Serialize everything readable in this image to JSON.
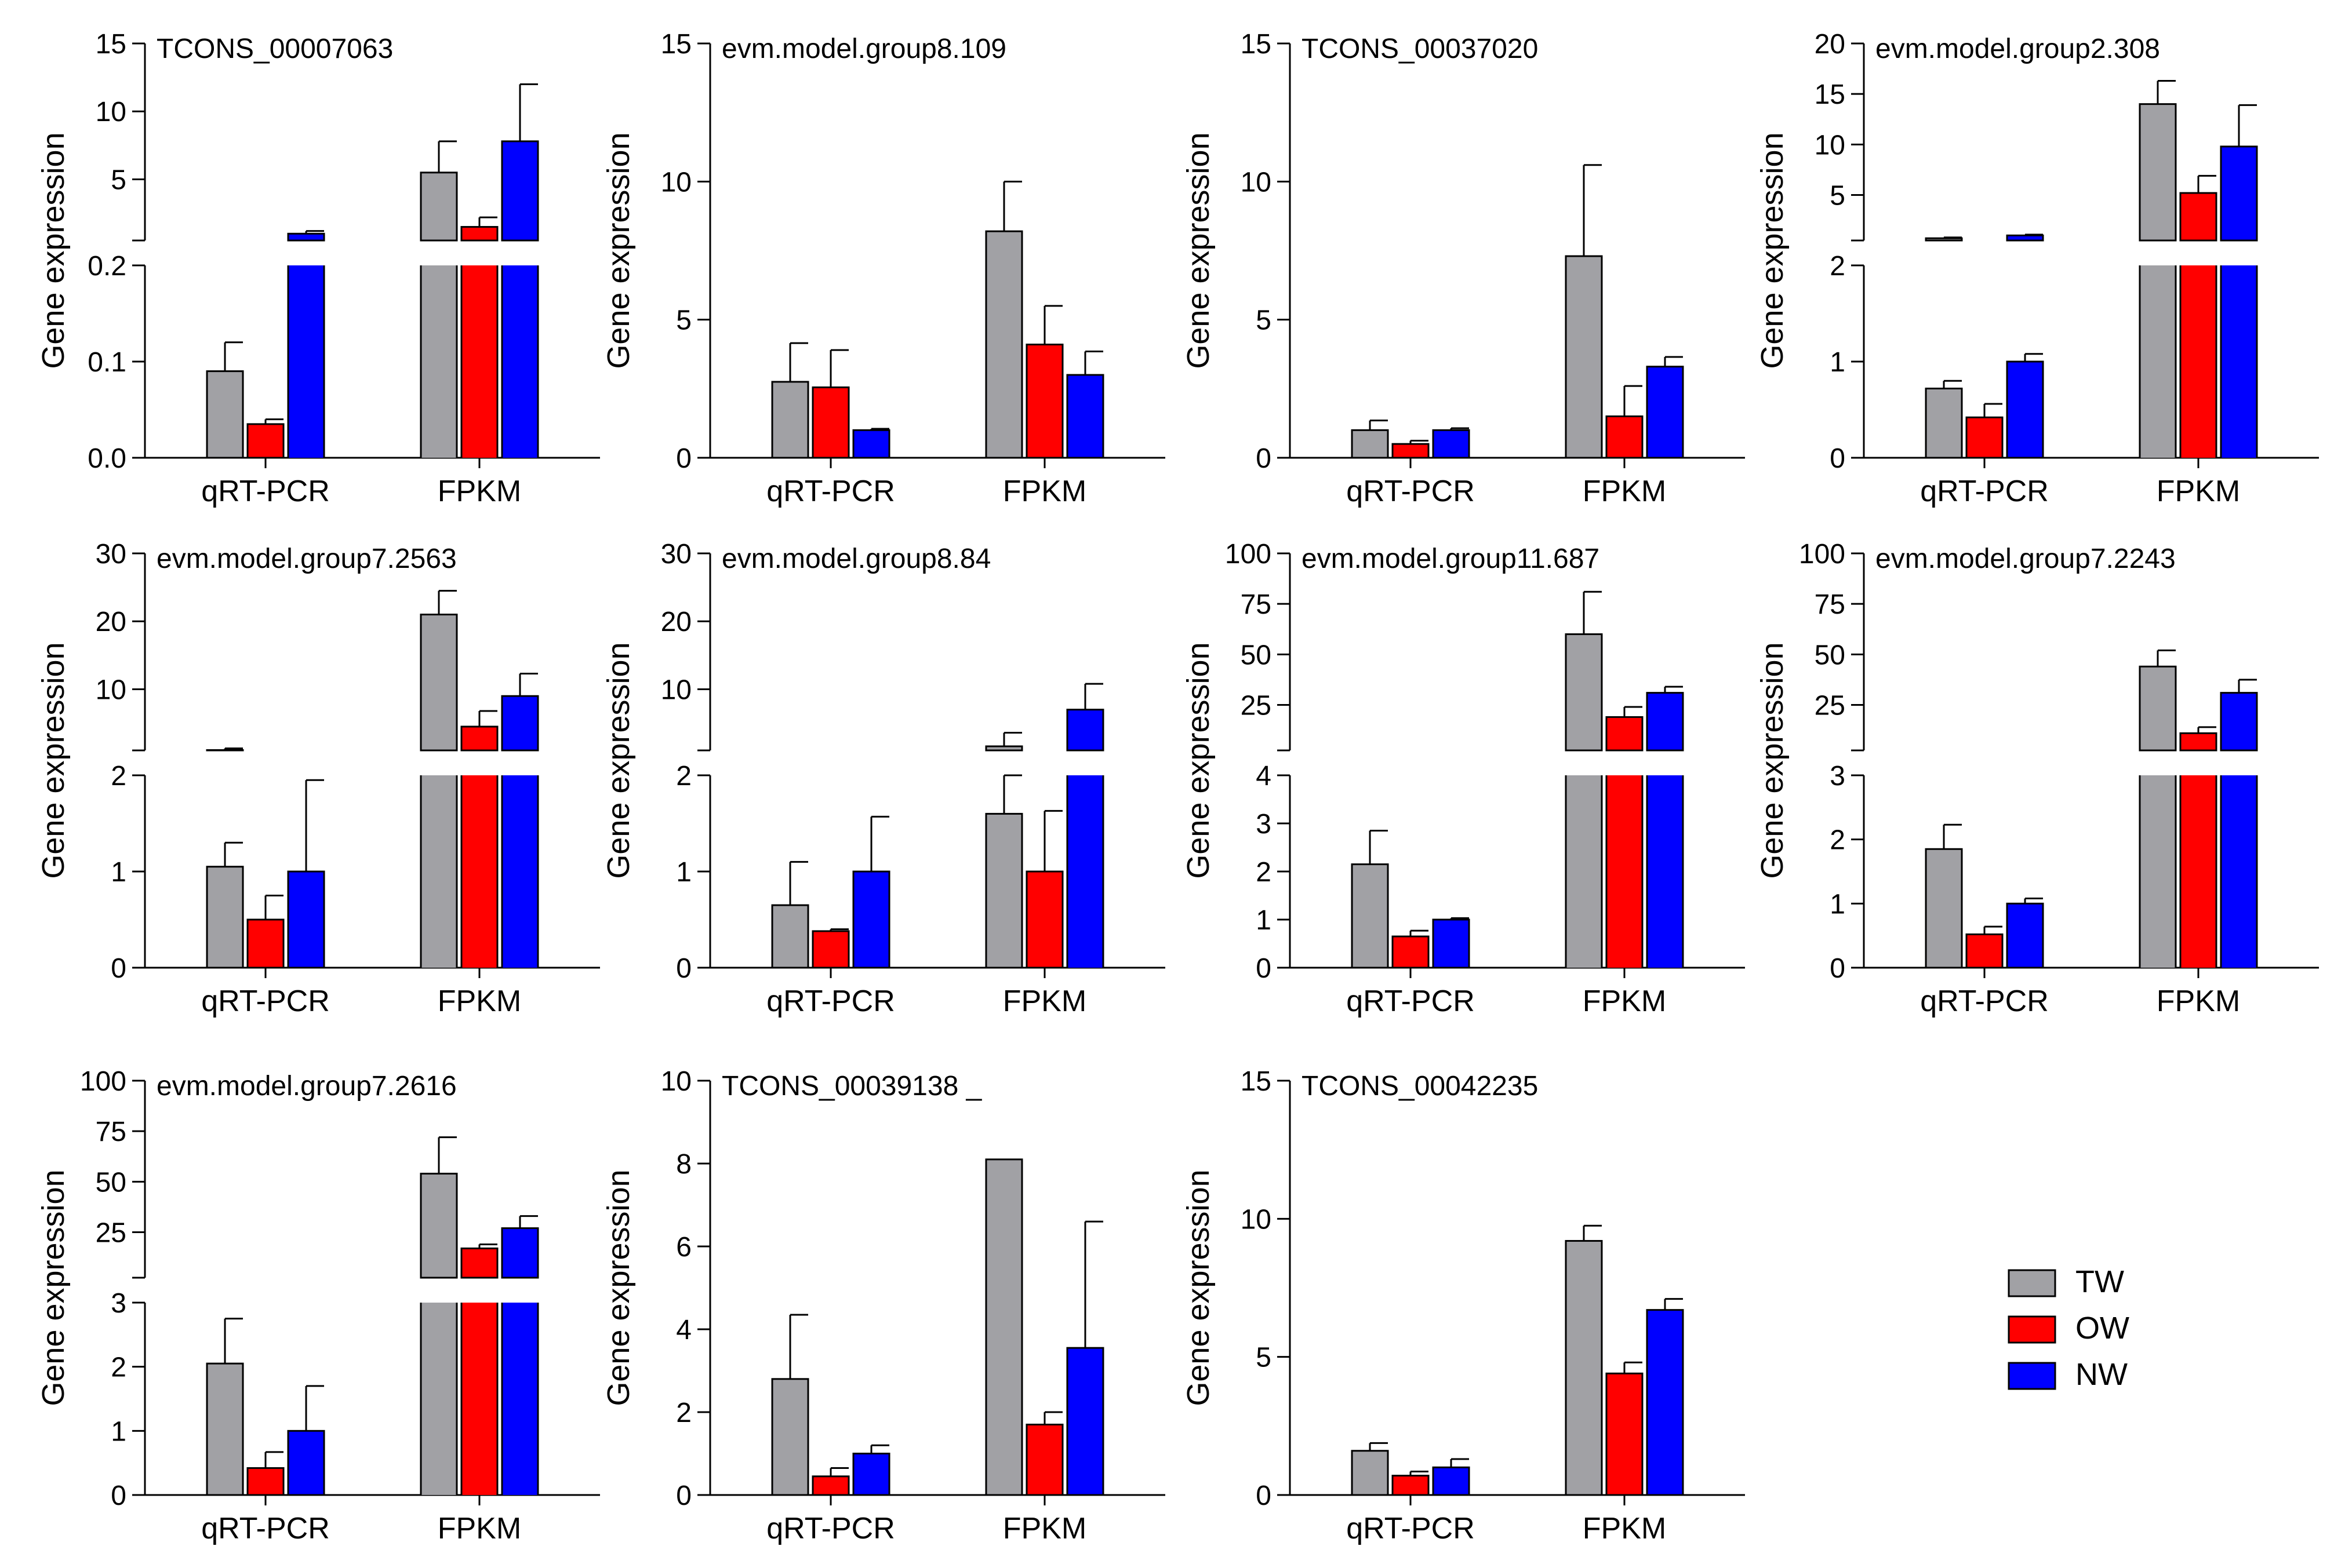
{
  "figure": {
    "ylabel": "Gene expression",
    "legend": [
      {
        "name": "TW",
        "color": "#a1a1a5"
      },
      {
        "name": "OW",
        "color": "#ff0000"
      },
      {
        "name": "NW",
        "color": "#0000ff"
      }
    ]
  },
  "chart_data": [
    {
      "type": "bar",
      "title": "TCONS_00007063",
      "categories": [
        "qRT-PCR",
        "FPKM"
      ],
      "ylabel": "Gene expression",
      "broken_axis": true,
      "lower": {
        "ylim": [
          0,
          0.2
        ],
        "ticks": [
          "0.0",
          "0.1",
          "0.2"
        ]
      },
      "upper": {
        "ylim": [
          0,
          15
        ],
        "ticks": [
          "5",
          "10",
          "15"
        ]
      },
      "series": [
        {
          "name": "TW",
          "values": [
            0.09,
            5.5
          ],
          "errors": [
            0.03,
            2.3
          ]
        },
        {
          "name": "OW",
          "values": [
            0.035,
            1.5
          ],
          "errors": [
            0.005,
            0.7
          ]
        },
        {
          "name": "NW",
          "values": [
            1.0,
            7.8
          ],
          "errors": [
            0.2,
            4.2
          ]
        }
      ]
    },
    {
      "type": "bar",
      "title": "evm.model.group8.109",
      "categories": [
        "qRT-PCR",
        "FPKM"
      ],
      "ylabel": "Gene expression",
      "broken_axis": false,
      "ylim": [
        0,
        15
      ],
      "ticks": [
        "0",
        "5",
        "10",
        "15"
      ],
      "series": [
        {
          "name": "TW",
          "values": [
            2.75,
            8.2
          ],
          "errors": [
            1.4,
            1.8
          ]
        },
        {
          "name": "OW",
          "values": [
            2.55,
            4.1
          ],
          "errors": [
            1.35,
            1.4
          ]
        },
        {
          "name": "NW",
          "values": [
            1.0,
            3.0
          ],
          "errors": [
            0.05,
            0.85
          ]
        }
      ]
    },
    {
      "type": "bar",
      "title": "TCONS_00037020",
      "categories": [
        "qRT-PCR",
        "FPKM"
      ],
      "ylabel": "Gene expression",
      "broken_axis": false,
      "ylim": [
        0,
        15
      ],
      "ticks": [
        "0",
        "5",
        "10",
        "15"
      ],
      "series": [
        {
          "name": "TW",
          "values": [
            1.0,
            7.3
          ],
          "errors": [
            0.35,
            3.3
          ]
        },
        {
          "name": "OW",
          "values": [
            0.5,
            1.5
          ],
          "errors": [
            0.12,
            1.1
          ]
        },
        {
          "name": "NW",
          "values": [
            1.0,
            3.3
          ],
          "errors": [
            0.07,
            0.35
          ]
        }
      ]
    },
    {
      "type": "bar",
      "title": "evm.model.group2.308",
      "categories": [
        "qRT-PCR",
        "FPKM"
      ],
      "ylabel": "Gene expression",
      "broken_axis": true,
      "lower": {
        "ylim": [
          0,
          2
        ],
        "ticks": [
          "0",
          "1",
          "2"
        ]
      },
      "upper": {
        "ylim": [
          0,
          20
        ],
        "ticks": [
          "5",
          "10",
          "15",
          "20"
        ]
      },
      "series": [
        {
          "name": "TW",
          "values": [
            0.72,
            14.0
          ],
          "errors": [
            0.08,
            2.3
          ]
        },
        {
          "name": "OW",
          "values": [
            0.42,
            5.2
          ],
          "errors": [
            0.14,
            1.7
          ]
        },
        {
          "name": "NW",
          "values": [
            1.0,
            9.8
          ],
          "errors": [
            0.08,
            4.1
          ]
        }
      ]
    },
    {
      "type": "bar",
      "title": "evm.model.group7.2563",
      "categories": [
        "qRT-PCR",
        "FPKM"
      ],
      "ylabel": "Gene expression",
      "broken_axis": true,
      "lower": {
        "ylim": [
          0,
          2
        ],
        "ticks": [
          "0",
          "1",
          "2"
        ]
      },
      "upper": {
        "ylim": [
          0,
          30
        ],
        "ticks": [
          "10",
          "20",
          "30"
        ]
      },
      "series": [
        {
          "name": "TW",
          "values": [
            1.05,
            21.0
          ],
          "errors": [
            0.25,
            3.5
          ]
        },
        {
          "name": "OW",
          "values": [
            0.5,
            4.5
          ],
          "errors": [
            0.25,
            2.3
          ]
        },
        {
          "name": "NW",
          "values": [
            1.0,
            9.0
          ],
          "errors": [
            0.95,
            3.3
          ]
        }
      ]
    },
    {
      "type": "bar",
      "title": "evm.model.group8.84",
      "categories": [
        "qRT-PCR",
        "FPKM"
      ],
      "ylabel": "Gene expression",
      "broken_axis": true,
      "lower": {
        "ylim": [
          0,
          2
        ],
        "ticks": [
          "0",
          "1",
          "2"
        ]
      },
      "upper": {
        "ylim": [
          0,
          30
        ],
        "ticks": [
          "10",
          "20",
          "30"
        ]
      },
      "series": [
        {
          "name": "TW",
          "values": [
            0.65,
            1.6
          ],
          "errors": [
            0.45,
            2.0
          ]
        },
        {
          "name": "OW",
          "values": [
            0.38,
            1.0
          ],
          "errors": [
            0.02,
            0.63
          ]
        },
        {
          "name": "NW",
          "values": [
            1.0,
            7.0
          ],
          "errors": [
            0.57,
            3.8
          ]
        }
      ]
    },
    {
      "type": "bar",
      "title": "evm.model.group11.687",
      "categories": [
        "qRT-PCR",
        "FPKM"
      ],
      "ylabel": "Gene expression",
      "broken_axis": true,
      "lower": {
        "ylim": [
          0,
          4
        ],
        "ticks": [
          "0",
          "1",
          "2",
          "3",
          "4"
        ]
      },
      "upper": {
        "ylim": [
          0,
          100
        ],
        "ticks": [
          "25",
          "50",
          "75",
          "100"
        ]
      },
      "series": [
        {
          "name": "TW",
          "values": [
            2.15,
            60.0
          ],
          "errors": [
            0.7,
            21.0
          ]
        },
        {
          "name": "OW",
          "values": [
            0.65,
            19.0
          ],
          "errors": [
            0.12,
            5.0
          ]
        },
        {
          "name": "NW",
          "values": [
            1.0,
            31.0
          ],
          "errors": [
            0.03,
            3.0
          ]
        }
      ]
    },
    {
      "type": "bar",
      "title": "evm.model.group7.2243",
      "categories": [
        "qRT-PCR",
        "FPKM"
      ],
      "ylabel": "Gene expression",
      "broken_axis": true,
      "lower": {
        "ylim": [
          0,
          3
        ],
        "ticks": [
          "0",
          "1",
          "2",
          "3"
        ]
      },
      "upper": {
        "ylim": [
          0,
          100
        ],
        "ticks": [
          "25",
          "50",
          "75",
          "100"
        ]
      },
      "series": [
        {
          "name": "TW",
          "values": [
            1.85,
            44.0
          ],
          "errors": [
            0.38,
            8.0
          ]
        },
        {
          "name": "OW",
          "values": [
            0.52,
            11.0
          ],
          "errors": [
            0.12,
            3.0
          ]
        },
        {
          "name": "NW",
          "values": [
            1.0,
            31.0
          ],
          "errors": [
            0.08,
            6.5
          ]
        }
      ]
    },
    {
      "type": "bar",
      "title": "evm.model.group7.2616",
      "categories": [
        "qRT-PCR",
        "FPKM"
      ],
      "ylabel": "Gene expression",
      "broken_axis": true,
      "lower": {
        "ylim": [
          0,
          3
        ],
        "ticks": [
          "0",
          "1",
          "2",
          "3"
        ]
      },
      "upper": {
        "ylim": [
          0,
          100
        ],
        "ticks": [
          "25",
          "50",
          "75",
          "100"
        ]
      },
      "series": [
        {
          "name": "TW",
          "values": [
            2.05,
            54.0
          ],
          "errors": [
            0.7,
            18.0
          ]
        },
        {
          "name": "OW",
          "values": [
            0.42,
            17.0
          ],
          "errors": [
            0.25,
            2.0
          ]
        },
        {
          "name": "NW",
          "values": [
            1.0,
            27.0
          ],
          "errors": [
            0.7,
            6.0
          ]
        }
      ]
    },
    {
      "type": "bar",
      "title": "TCONS_00039138",
      "title_suffix": "_",
      "categories": [
        "qRT-PCR",
        "FPKM"
      ],
      "ylabel": "Gene expression",
      "broken_axis": false,
      "ylim": [
        0,
        10
      ],
      "ticks": [
        "0",
        "2",
        "4",
        "6",
        "8",
        "10"
      ],
      "series": [
        {
          "name": "TW",
          "values": [
            2.8,
            8.1
          ],
          "errors": [
            1.55,
            0.0
          ]
        },
        {
          "name": "OW",
          "values": [
            0.45,
            1.7
          ],
          "errors": [
            0.2,
            0.3
          ]
        },
        {
          "name": "NW",
          "values": [
            1.0,
            3.55
          ],
          "errors": [
            0.2,
            3.05
          ]
        }
      ]
    },
    {
      "type": "bar",
      "title": "TCONS_00042235",
      "categories": [
        "qRT-PCR",
        "FPKM"
      ],
      "ylabel": "Gene expression",
      "broken_axis": false,
      "ylim": [
        0,
        15
      ],
      "ticks": [
        "0",
        "5",
        "10",
        "15"
      ],
      "series": [
        {
          "name": "TW",
          "values": [
            1.6,
            9.2
          ],
          "errors": [
            0.28,
            0.55
          ]
        },
        {
          "name": "OW",
          "values": [
            0.7,
            4.4
          ],
          "errors": [
            0.15,
            0.4
          ]
        },
        {
          "name": "NW",
          "values": [
            1.0,
            6.7
          ],
          "errors": [
            0.3,
            0.4
          ]
        }
      ]
    }
  ]
}
